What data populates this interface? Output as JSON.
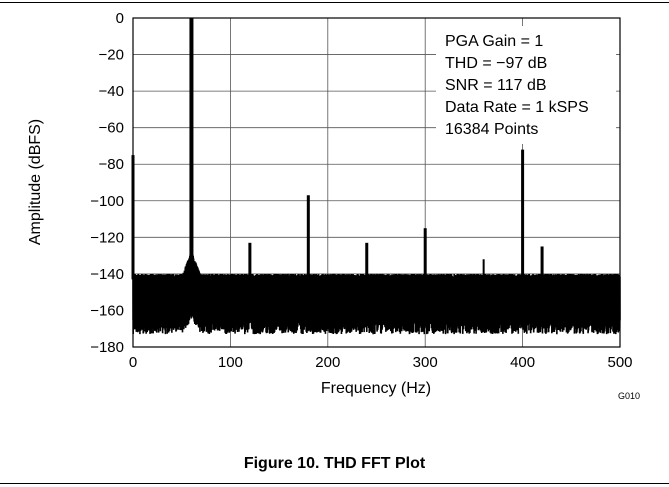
{
  "figure": {
    "caption": "Figure 10. THD FFT Plot",
    "figure_code": "G010"
  },
  "chart_data": {
    "type": "line",
    "xlabel": "Frequency (Hz)",
    "ylabel": "Amplitude (dBFS)",
    "xlim": [
      0,
      500
    ],
    "ylim": [
      -180,
      0
    ],
    "xticks": [
      0,
      100,
      200,
      300,
      400,
      500
    ],
    "yticks": [
      0,
      -20,
      -40,
      -60,
      -80,
      -100,
      -120,
      -140,
      -160,
      -180
    ],
    "xtick_labels": [
      "0",
      "100",
      "200",
      "300",
      "400",
      "500"
    ],
    "ytick_labels": [
      "0",
      "−20",
      "−40",
      "−60",
      "−80",
      "−100",
      "−120",
      "−140",
      "−160",
      "−180"
    ],
    "grid": true,
    "line_color": "#000000",
    "annotation": [
      "PGA Gain = 1",
      "THD = −97 dB",
      "SNR = 117 dB",
      "Data Rate = 1 kSPS",
      "16384 Points"
    ],
    "noise_floor": {
      "upper": -143,
      "lower": -165,
      "x_start": 0,
      "x_end": 500
    },
    "peaks": [
      {
        "x": 0,
        "y": -75
      },
      {
        "x": 60,
        "y": 0
      },
      {
        "x": 120,
        "y": -123
      },
      {
        "x": 180,
        "y": -97
      },
      {
        "x": 240,
        "y": -123
      },
      {
        "x": 300,
        "y": -115
      },
      {
        "x": 360,
        "y": -132
      },
      {
        "x": 400,
        "y": -72
      },
      {
        "x": 420,
        "y": -125
      },
      {
        "x": 460,
        "y": -140
      },
      {
        "x": 480,
        "y": -148
      }
    ]
  }
}
